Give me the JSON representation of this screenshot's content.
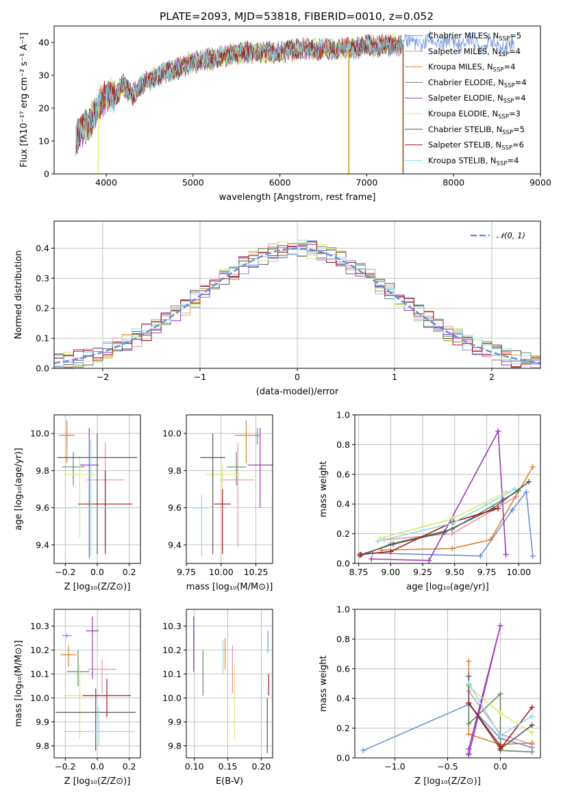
{
  "title": "PLATE=2093, MJD=53818, FIBERID=0010, z=0.052",
  "colors": [
    "#6a8fd6",
    "#e98fae",
    "#d9822b",
    "#5e8a5e",
    "#9b38b4",
    "#dbe86a",
    "#555555",
    "#aa1515",
    "#86dce8"
  ],
  "chart_data": [
    {
      "type": "line",
      "name": "spectrum",
      "xlabel": "wavelength [Angstrom, rest frame]",
      "ylabel": "Flux [fλ10⁻¹⁷ erg cm⁻² s⁻¹ A⁻¹]",
      "xlim": [
        3400,
        9000
      ],
      "ylim": [
        0,
        45
      ],
      "xticks": [
        4000,
        5000,
        6000,
        7000,
        8000,
        9000
      ],
      "yticks": [
        0,
        10,
        20,
        30,
        40
      ],
      "grid": false,
      "legend_position": "right",
      "legend": [
        {
          "label": "Chabrier MILES, N",
          "sub": "SSP",
          "tail": "=5"
        },
        {
          "label": "Salpeter MILES, N",
          "sub": "SSP",
          "tail": "=4"
        },
        {
          "label": "Kroupa MILES, N",
          "sub": "SSP",
          "tail": "=4"
        },
        {
          "label": "Chabrier ELODIE, N",
          "sub": "SSP",
          "tail": "=4"
        },
        {
          "label": "Salpeter ELODIE, N",
          "sub": "SSP",
          "tail": "=4"
        },
        {
          "label": "Kroupa ELODIE, N",
          "sub": "SSP",
          "tail": "=3"
        },
        {
          "label": "Chabrier STELIB, N",
          "sub": "SSP",
          "tail": "=5"
        },
        {
          "label": "Salpeter STELIB, N",
          "sub": "SSP",
          "tail": "=6"
        },
        {
          "label": "Kroupa STELIB, N",
          "sub": "SSP",
          "tail": "=4"
        }
      ],
      "continuum": {
        "x": [
          3650,
          3700,
          3800,
          3900,
          4000,
          4100,
          4200,
          4300,
          4400,
          4600,
          4800,
          5000,
          5200,
          5400,
          5600,
          5800,
          6000,
          6200,
          6400,
          6600,
          6800,
          7000,
          7200,
          7400,
          7600,
          7800,
          8000,
          8200,
          8400,
          8600,
          8700
        ],
        "y": [
          11,
          13,
          15,
          20,
          24,
          24,
          27,
          24,
          27,
          30,
          32,
          34,
          35,
          36,
          37,
          37,
          37,
          38,
          38,
          38,
          38,
          39,
          39,
          39.5,
          40,
          40,
          40,
          40,
          39.5,
          39,
          39
        ]
      },
      "drops": [
        {
          "x": 3910,
          "color": 5
        },
        {
          "x": 6790,
          "color": 5
        },
        {
          "x": 6795,
          "color": 2
        },
        {
          "x": 7415,
          "color": 2
        },
        {
          "x": 7420,
          "color": 7
        },
        {
          "x": 7425,
          "color": 8
        }
      ]
    },
    {
      "type": "bar",
      "name": "residual-histogram",
      "xlabel": "(data-model)/error",
      "ylabel": "Normed distribution",
      "xlim": [
        -2.5,
        2.5
      ],
      "ylim": [
        0,
        0.49
      ],
      "xticks": [
        -2,
        -1,
        0,
        1,
        2
      ],
      "yticks": [
        0.0,
        0.1,
        0.2,
        0.3,
        0.4
      ],
      "grid": true,
      "legend_position": "top-right",
      "legend": [
        {
          "label": "𝒩(0, 1)"
        }
      ],
      "bins": {
        "start": -2.5,
        "width": 0.1
      }
    },
    {
      "type": "scatter",
      "name": "age-vs-Z",
      "xlabel": "Z [log₁₀(Z/Z⊙)]",
      "ylabel": "age  [log₁₀(age/yr)]",
      "xlim": [
        -0.27,
        0.27
      ],
      "ylim": [
        9.3,
        10.1
      ],
      "xticks": [
        -0.2,
        0.0,
        0.2
      ],
      "xtick_labels": [
        "−0.2",
        "0.0",
        "0.2"
      ],
      "yticks": [
        9.4,
        9.6,
        9.8,
        10.0
      ],
      "grid": true,
      "points": [
        {
          "x": -0.19,
          "xerr": 0.03,
          "y": 9.99,
          "yerr": [
            0.05,
            0.04
          ],
          "color": 0
        },
        {
          "x": 0.05,
          "xerr": 0.12,
          "y": 9.75,
          "yerr": [
            0.35,
            0.2
          ],
          "color": 1
        },
        {
          "x": -0.19,
          "xerr": 0.05,
          "y": 9.99,
          "yerr": [
            0.15,
            0.08
          ],
          "color": 2
        },
        {
          "x": -0.15,
          "xerr": 0.07,
          "y": 9.82,
          "yerr": [
            0.1,
            0.08
          ],
          "color": 3
        },
        {
          "x": -0.05,
          "xerr": 0.06,
          "y": 9.83,
          "yerr": [
            0.5,
            0.2
          ],
          "color": 4
        },
        {
          "x": -0.11,
          "xerr": 0.1,
          "y": 9.78,
          "yerr": [
            0.34,
            0.1
          ],
          "color": 5
        },
        {
          "x": 0.0,
          "xerr": 0.25,
          "y": 9.87,
          "yerr": [
            0.52,
            0.13
          ],
          "color": 6
        },
        {
          "x": 0.05,
          "xerr": 0.17,
          "y": 9.62,
          "yerr": [
            0.27,
            0.18
          ],
          "color": 7
        },
        {
          "x": -0.04,
          "xerr": 0.23,
          "y": 9.6,
          "yerr": [
            0.26,
            0.37
          ],
          "color": 8
        }
      ]
    },
    {
      "type": "scatter",
      "name": "age-vs-mass",
      "xlabel": "mass [log₁₀(M/M⊙)]",
      "ylabel": "",
      "xlim": [
        9.75,
        10.37
      ],
      "ylim": [
        9.3,
        10.1
      ],
      "xticks": [
        9.75,
        10.0,
        10.25
      ],
      "xtick_labels": [
        "9.75",
        "10.00",
        "10.25"
      ],
      "yticks": [
        9.4,
        9.6,
        9.8,
        10.0
      ],
      "grid": true,
      "points": [
        {
          "x": 10.26,
          "xerr": 0.02,
          "y": 9.99,
          "yerr": [
            0.05,
            0.04
          ],
          "color": 0
        },
        {
          "x": 10.12,
          "xerr": 0.12,
          "y": 9.75,
          "yerr": [
            0.36,
            0.2
          ],
          "color": 1
        },
        {
          "x": 10.18,
          "xerr": 0.08,
          "y": 9.99,
          "yerr": [
            0.15,
            0.08
          ],
          "color": 2
        },
        {
          "x": 10.11,
          "xerr": 0.07,
          "y": 9.82,
          "yerr": [
            0.1,
            0.08
          ],
          "color": 3
        },
        {
          "x": 10.28,
          "xerr": 0.09,
          "y": 9.83,
          "yerr": [
            0.23,
            0.2
          ],
          "color": 4
        },
        {
          "x": 10.01,
          "xerr": 0.12,
          "y": 9.78,
          "yerr": [
            0.1,
            0.05
          ],
          "color": 5
        },
        {
          "x": 9.94,
          "xerr": 0.09,
          "y": 9.87,
          "yerr": [
            0.52,
            0.13
          ],
          "color": 6
        },
        {
          "x": 10.01,
          "xerr": 0.06,
          "y": 9.62,
          "yerr": [
            0.27,
            0.08
          ],
          "color": 7
        },
        {
          "x": 9.86,
          "xerr": 0.06,
          "y": 9.6,
          "yerr": [
            0.26,
            0.07
          ],
          "color": 8
        }
      ]
    },
    {
      "type": "line",
      "name": "mass-weight-vs-age",
      "xlabel": "age  [log₁₀(age/yr)]",
      "ylabel": "mass weight",
      "xlim": [
        8.72,
        10.17
      ],
      "ylim": [
        0,
        1.0
      ],
      "xticks": [
        8.75,
        9.0,
        9.25,
        9.5,
        9.75,
        10.0
      ],
      "xtick_labels": [
        "8.75",
        "9.00",
        "9.25",
        "9.50",
        "9.75",
        "10.00"
      ],
      "yticks": [
        0.0,
        0.2,
        0.4,
        0.6,
        0.8,
        1.0
      ],
      "ytick_labels": [
        "0.0",
        "0.2",
        "0.4",
        "0.6",
        "0.8",
        "1.0"
      ],
      "grid": true,
      "series": [
        {
          "color": 0,
          "x": [
            8.86,
            9.7,
            9.95,
            10.06,
            10.11
          ],
          "y": [
            0.07,
            0.05,
            0.36,
            0.48,
            0.05
          ]
        },
        {
          "color": 1,
          "x": [
            8.95,
            9.48,
            9.98
          ],
          "y": [
            0.16,
            0.2,
            0.45
          ]
        },
        {
          "color": 2,
          "x": [
            8.93,
            9.48,
            9.78,
            10.11
          ],
          "y": [
            0.09,
            0.1,
            0.16,
            0.65
          ]
        },
        {
          "color": 3,
          "x": [
            8.76,
            9.0,
            9.48,
            9.88,
            10.0
          ],
          "y": [
            0.05,
            0.13,
            0.23,
            0.43,
            0.49
          ]
        },
        {
          "color": 4,
          "x": [
            8.85,
            9.3,
            9.84,
            9.9
          ],
          "y": [
            0.03,
            0.02,
            0.89,
            0.06
          ]
        },
        {
          "color": 5,
          "x": [
            8.92,
            9.48,
            9.9
          ],
          "y": [
            0.17,
            0.3,
            0.48
          ]
        },
        {
          "color": 6,
          "x": [
            8.77,
            9.02,
            9.42,
            9.8,
            10.08
          ],
          "y": [
            0.06,
            0.13,
            0.21,
            0.37,
            0.55
          ]
        },
        {
          "color": 7,
          "x": [
            8.76,
            9.0,
            9.49,
            9.84
          ],
          "y": [
            0.06,
            0.08,
            0.28,
            0.37
          ]
        },
        {
          "color": 8,
          "x": [
            8.9,
            9.48,
            9.97
          ],
          "y": [
            0.15,
            0.27,
            0.5
          ]
        }
      ]
    },
    {
      "type": "scatter",
      "name": "mass-vs-Z",
      "xlabel": "Z [log₁₀(Z/Z⊙)]",
      "ylabel": "mass [log₁₀(M/M⊙)]",
      "xlim": [
        -0.27,
        0.27
      ],
      "ylim": [
        9.75,
        10.37
      ],
      "xticks": [
        -0.2,
        0.0,
        0.2
      ],
      "xtick_labels": [
        "−0.2",
        "0.0",
        "0.2"
      ],
      "yticks": [
        9.8,
        9.9,
        10.0,
        10.1,
        10.2,
        10.3
      ],
      "grid": true,
      "points": [
        {
          "x": -0.19,
          "xerr": 0.03,
          "y": 10.26,
          "yerr": [
            0.01,
            0.01
          ],
          "color": 0
        },
        {
          "x": 0.03,
          "xerr": 0.09,
          "y": 10.12,
          "yerr": [
            0.1,
            0.04
          ],
          "color": 1
        },
        {
          "x": -0.18,
          "xerr": 0.05,
          "y": 10.18,
          "yerr": [
            0.05,
            0.04
          ],
          "color": 2
        },
        {
          "x": -0.12,
          "xerr": 0.07,
          "y": 10.11,
          "yerr": [
            0.06,
            0.09
          ],
          "color": 3
        },
        {
          "x": -0.03,
          "xerr": 0.04,
          "y": 10.28,
          "yerr": [
            0.2,
            0.06
          ],
          "color": 4
        },
        {
          "x": -0.11,
          "xerr": 0.1,
          "y": 10.01,
          "yerr": [
            0.18,
            0.13
          ],
          "color": 5
        },
        {
          "x": -0.01,
          "xerr": 0.25,
          "y": 9.94,
          "yerr": [
            0.16,
            0.1
          ],
          "color": 6
        },
        {
          "x": 0.06,
          "xerr": 0.15,
          "y": 10.01,
          "yerr": [
            0.09,
            0.07
          ],
          "color": 7
        },
        {
          "x": 0.01,
          "xerr": 0.22,
          "y": 9.86,
          "yerr": [
            0.06,
            0.1
          ],
          "color": 8
        }
      ]
    },
    {
      "type": "scatter",
      "name": "mass-vs-EBV",
      "xlabel": "E(B-V)",
      "ylabel": "",
      "xlim": [
        0.088,
        0.217
      ],
      "ylim": [
        9.75,
        10.37
      ],
      "xticks": [
        0.1,
        0.15,
        0.2
      ],
      "xtick_labels": [
        "0.10",
        "0.15",
        "0.20"
      ],
      "yticks": [
        9.8,
        9.9,
        10.0,
        10.1,
        10.2,
        10.3
      ],
      "grid": true,
      "points": [
        {
          "x": 0.21,
          "y": 10.26,
          "yerr": [
            0.07,
            0.02
          ],
          "color": 0
        },
        {
          "x": 0.157,
          "y": 10.12,
          "yerr": [
            0.1,
            0.1
          ],
          "color": 1
        },
        {
          "x": 0.146,
          "y": 10.18,
          "yerr": [
            0.06,
            0.07
          ],
          "color": 2
        },
        {
          "x": 0.113,
          "y": 10.11,
          "yerr": [
            0.1,
            0.09
          ],
          "color": 3
        },
        {
          "x": 0.099,
          "y": 10.28,
          "yerr": [
            0.17,
            0.06
          ],
          "color": 4
        },
        {
          "x": 0.16,
          "y": 10.01,
          "yerr": [
            0.18,
            0.13
          ],
          "color": 5
        },
        {
          "x": 0.209,
          "y": 9.9,
          "yerr": [
            0.13,
            0.1
          ],
          "color": 6
        },
        {
          "x": 0.211,
          "y": 10.06,
          "yerr": [
            0.05,
            0.04
          ],
          "color": 7
        },
        {
          "x": 0.143,
          "y": 10.16,
          "yerr": [
            0.06,
            0.08
          ],
          "color": 8
        }
      ]
    },
    {
      "type": "line",
      "name": "mass-weight-vs-Z",
      "xlabel": "Z [log₁₀(Z/Z⊙)]",
      "ylabel": "mass weight",
      "xlim": [
        -1.38,
        0.38
      ],
      "ylim": [
        0,
        1.0
      ],
      "xticks": [
        -1.0,
        -0.5,
        0.0
      ],
      "xtick_labels": [
        "−1.0",
        "−0.5",
        "0.0"
      ],
      "yticks": [
        0.0,
        0.2,
        0.4,
        0.6,
        0.8,
        1.0
      ],
      "ytick_labels": [
        "0.0",
        "0.2",
        "0.4",
        "0.6",
        "0.8",
        "1.0"
      ],
      "grid": true,
      "series": [
        {
          "color": 0,
          "x": [
            -1.3,
            -0.3,
            0.0,
            0.3
          ],
          "y": [
            0.05,
            0.36,
            0.13,
            0.07
          ]
        },
        {
          "color": 1,
          "x": [
            -0.3,
            0.0,
            0.3
          ],
          "y": [
            0.45,
            0.16,
            0.09
          ]
        },
        {
          "color": 2,
          "x": [
            -0.3,
            -0.3,
            0.0,
            0.3
          ],
          "y": [
            0.65,
            0.16,
            0.09,
            0.1
          ]
        },
        {
          "color": 3,
          "x": [
            -0.3,
            -0.3,
            0.0,
            0.0,
            0.3
          ],
          "y": [
            0.49,
            0.23,
            0.43,
            0.05,
            0.04
          ]
        },
        {
          "color": 4,
          "x": [
            -0.3,
            -0.3,
            0.0,
            -0.3
          ],
          "y": [
            0.03,
            0.06,
            0.89,
            0.02
          ]
        },
        {
          "color": 5,
          "x": [
            -0.3,
            0.0,
            0.3
          ],
          "y": [
            0.48,
            0.3,
            0.17
          ]
        },
        {
          "color": 6,
          "x": [
            -0.3,
            -0.3,
            0.0,
            0.3
          ],
          "y": [
            0.55,
            0.37,
            0.06,
            0.22
          ]
        },
        {
          "color": 7,
          "x": [
            -0.3,
            0.0,
            0.0,
            0.3
          ],
          "y": [
            0.37,
            0.08,
            0.06,
            0.34
          ]
        },
        {
          "color": 8,
          "x": [
            -0.3,
            0.0,
            0.3
          ],
          "y": [
            0.5,
            0.15,
            0.28
          ]
        }
      ]
    }
  ]
}
